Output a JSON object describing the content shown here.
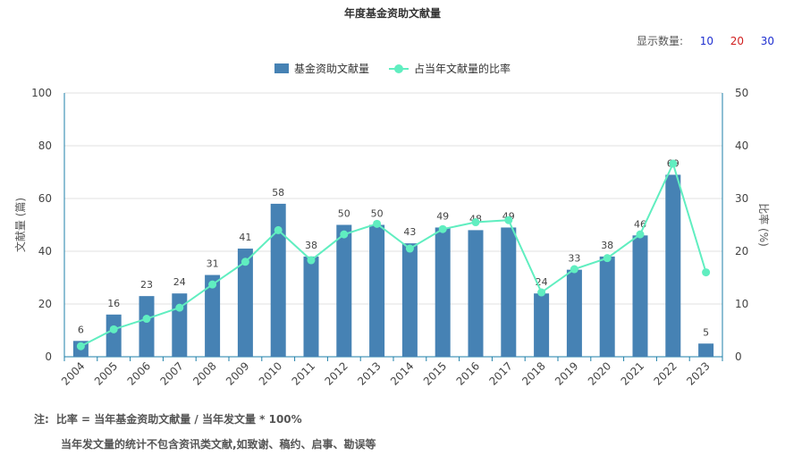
{
  "title": "年度基金资助文献量",
  "count_selector": {
    "label": "显示数量:",
    "options": [
      "10",
      "20",
      "30"
    ]
  },
  "legend": {
    "bar_label": "基金资助文献量",
    "line_label": "占当年文献量的比率"
  },
  "colors": {
    "bar": "#4682b4",
    "line": "#60eec0",
    "axis": "#1c7fa8",
    "grid": "#e0e0e0"
  },
  "chart_data": {
    "type": "bar",
    "categories": [
      "2004",
      "2005",
      "2006",
      "2007",
      "2008",
      "2009",
      "2010",
      "2011",
      "2012",
      "2013",
      "2014",
      "2015",
      "2016",
      "2017",
      "2018",
      "2019",
      "2020",
      "2021",
      "2022",
      "2023"
    ],
    "series": [
      {
        "name": "基金资助文献量",
        "type": "bar",
        "axis": "left",
        "values": [
          6,
          16,
          23,
          24,
          31,
          41,
          58,
          38,
          50,
          50,
          43,
          49,
          48,
          49,
          24,
          33,
          38,
          46,
          69,
          5
        ]
      },
      {
        "name": "占当年文献量的比率",
        "type": "line",
        "axis": "right",
        "values": [
          2.0,
          5.2,
          7.2,
          9.3,
          13.7,
          18.0,
          24.0,
          18.3,
          23.2,
          25.2,
          20.5,
          24.2,
          25.5,
          25.9,
          12.2,
          16.6,
          18.7,
          23.2,
          36.6,
          16.0
        ]
      }
    ],
    "ylabel": "文献量 (篇)",
    "ylim": [
      0,
      100
    ],
    "yticks": [
      0,
      20,
      40,
      60,
      80,
      100
    ],
    "y2label": "比率 (%)",
    "y2lim": [
      0,
      50
    ],
    "y2ticks": [
      0,
      10,
      20,
      30,
      40,
      50
    ],
    "grid": true,
    "legend_position": "top-center"
  },
  "notes": {
    "prefix": "注:",
    "line1": "比率 = 当年基金资助文献量 / 当年发文量 * 100%",
    "line2": "当年发文量的统计不包含资讯类文献,如致谢、稿约、启事、勘误等"
  }
}
